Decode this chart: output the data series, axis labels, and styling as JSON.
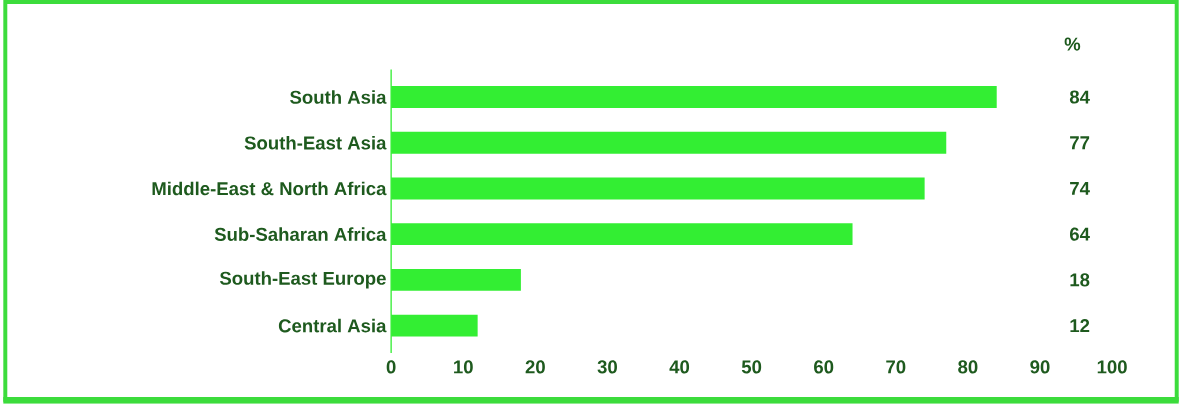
{
  "chart_data": {
    "type": "bar",
    "orientation": "horizontal",
    "categories": [
      "South Asia",
      "South-East Asia",
      "Middle-East & North Africa",
      "Sub-Saharan Africa",
      "South-East Europe",
      "Central Asia"
    ],
    "values": [
      84,
      77,
      74,
      64,
      18,
      12
    ],
    "color": "#33ee33",
    "xlim": [
      0,
      100
    ],
    "xticks": [
      0,
      10,
      20,
      30,
      40,
      50,
      60,
      70,
      80,
      90,
      100
    ],
    "data_labels": true,
    "annotations": [
      "%"
    ]
  }
}
